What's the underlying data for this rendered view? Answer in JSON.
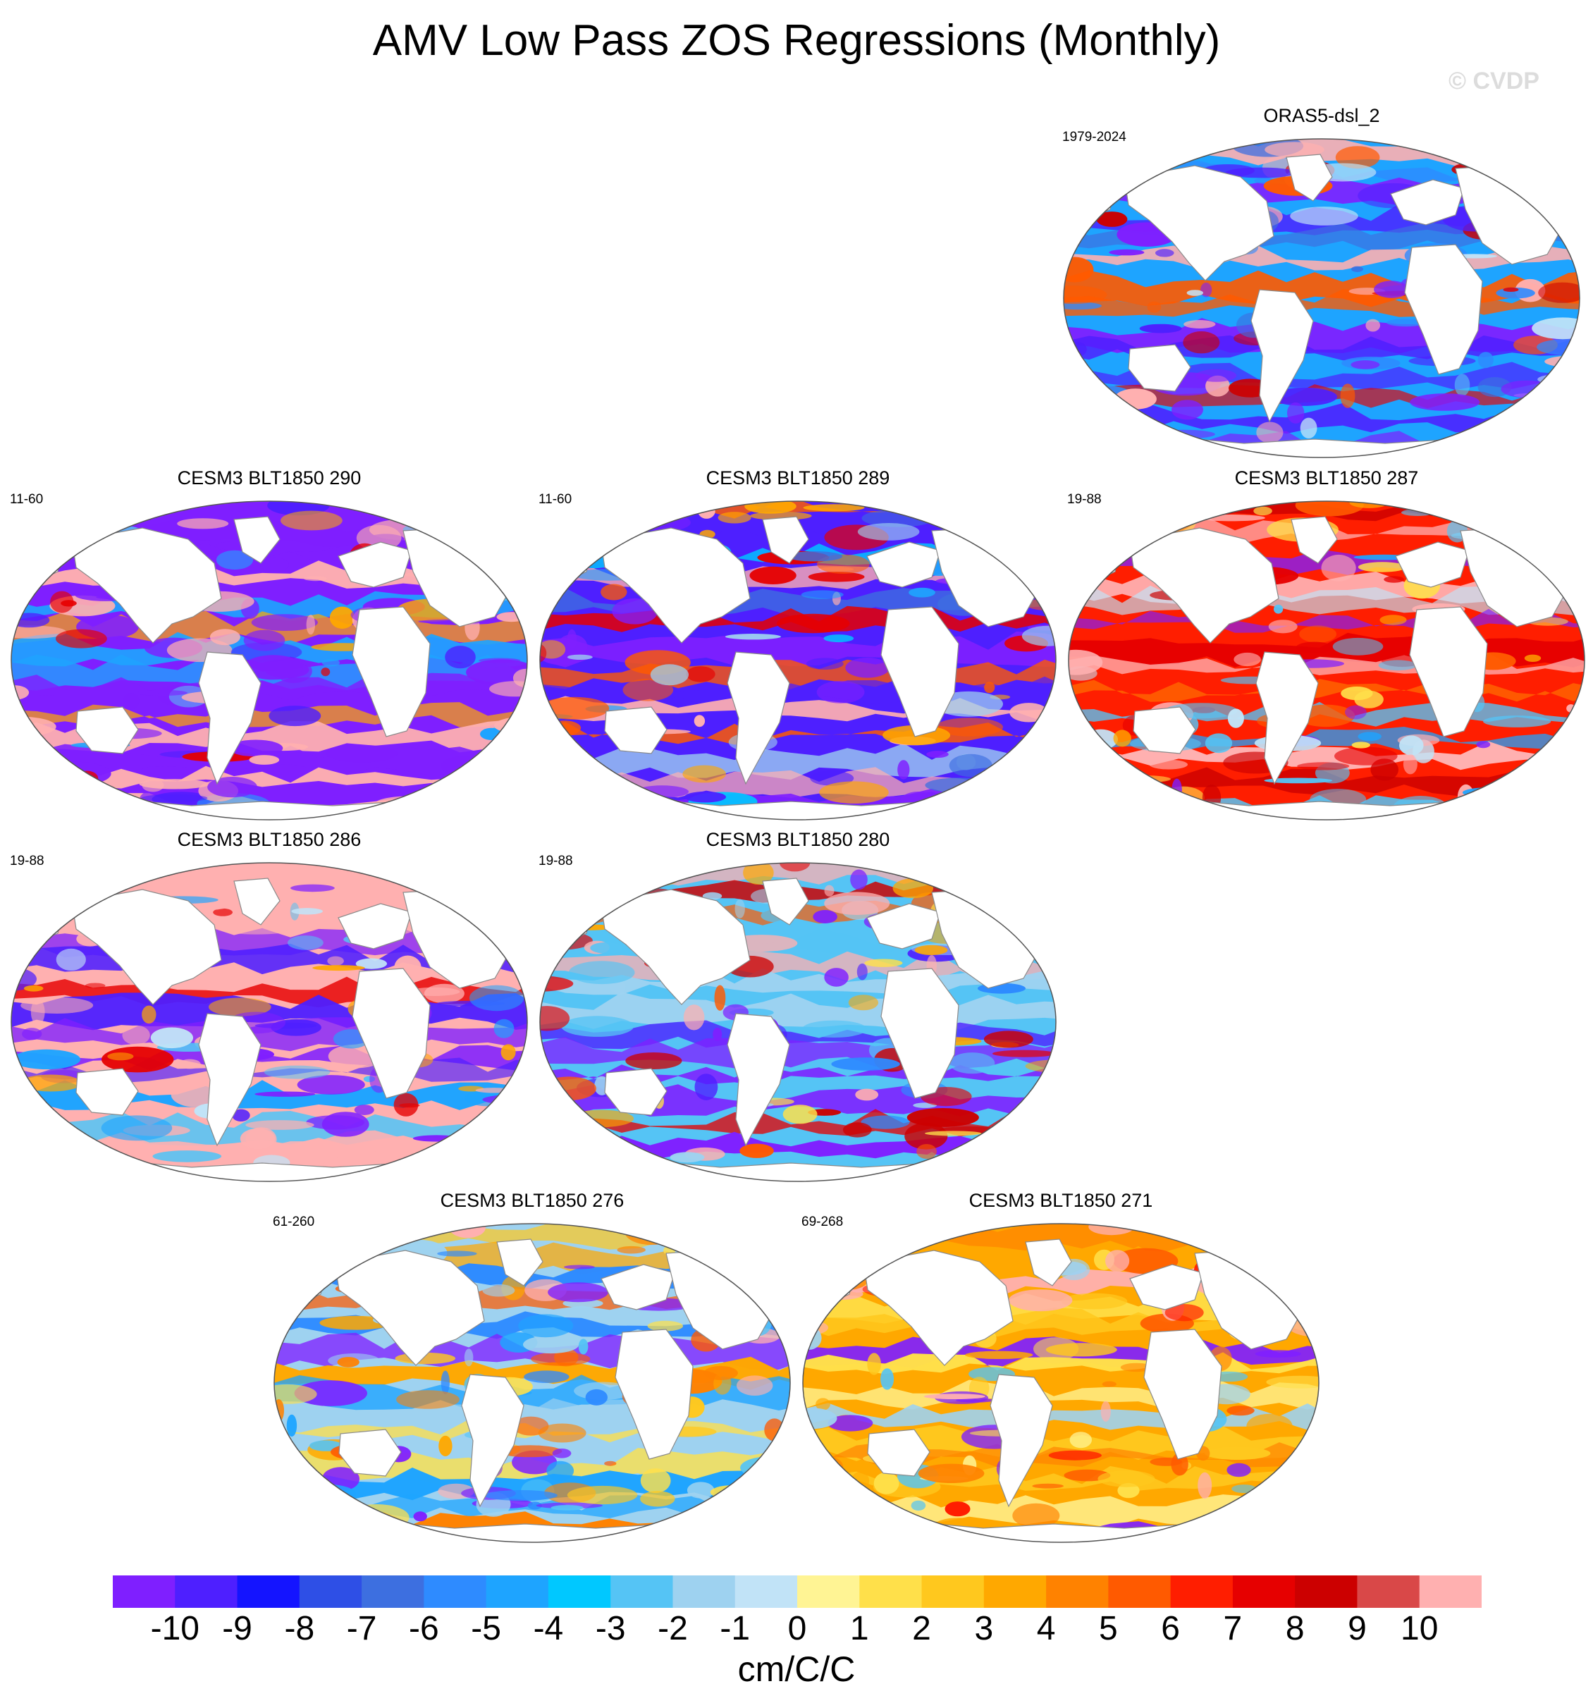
{
  "title": "AMV Low Pass ZOS Regressions (Monthly)",
  "watermark": "© CVDP",
  "units": "cm/C/C",
  "panels": [
    {
      "title": "ORAS5-dsl_2",
      "period": "1979-2024",
      "pattern": "obs"
    },
    {
      "title": "CESM3 BLT1850 290",
      "period": "11-60",
      "pattern": "neg"
    },
    {
      "title": "CESM3 BLT1850 289",
      "period": "11-60",
      "pattern": "negblue"
    },
    {
      "title": "CESM3 BLT1850 287",
      "period": "19-88",
      "pattern": "posmix"
    },
    {
      "title": "CESM3 BLT1850 286",
      "period": "19-88",
      "pattern": "pinkpac"
    },
    {
      "title": "CESM3 BLT1850 280",
      "period": "19-88",
      "pattern": "redpac"
    },
    {
      "title": "CESM3 BLT1850 276",
      "period": "61-260",
      "pattern": "orange"
    },
    {
      "title": "CESM3 BLT1850 271",
      "period": "69-268",
      "pattern": "orange2"
    }
  ],
  "colorbar": {
    "colors": [
      "#7f1fff",
      "#4e1fff",
      "#1414ff",
      "#2e4fe6",
      "#3d6fe0",
      "#2e8bff",
      "#1ea4ff",
      "#00c8ff",
      "#55c4f5",
      "#9ed2f0",
      "#c1e3f7",
      "#fff494",
      "#ffe04a",
      "#ffc81e",
      "#ffa800",
      "#ff8200",
      "#ff5a00",
      "#ff1e00",
      "#e60000",
      "#cc0000",
      "#d94848",
      "#ffb0b0"
    ],
    "labels": [
      "-10",
      "-9",
      "-8",
      "-7",
      "-6",
      "-5",
      "-4",
      "-3",
      "-2",
      "-1",
      "0",
      "1",
      "2",
      "3",
      "4",
      "5",
      "6",
      "7",
      "8",
      "9",
      "10"
    ]
  }
}
